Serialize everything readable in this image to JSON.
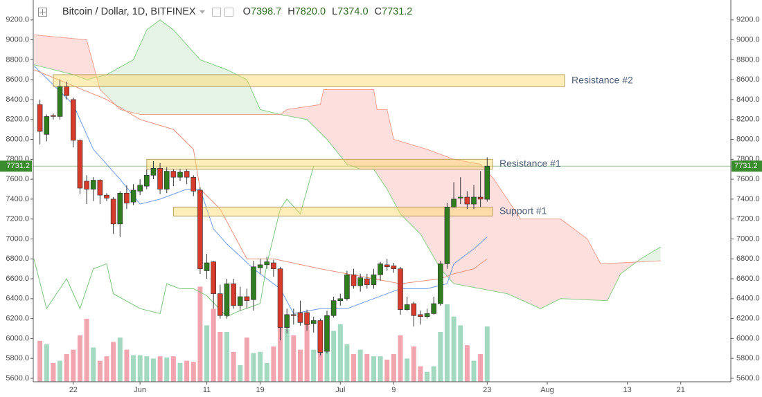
{
  "chart_data": {
    "type": "candlestick",
    "title": "Bitcoin / Dollar, 1D, BITFINEX",
    "ohlc_header": [
      {
        "key": "O",
        "label": "7398.7"
      },
      {
        "key": "H",
        "label": "7820.0"
      },
      {
        "key": "L",
        "label": "7374.0"
      },
      {
        "key": "C",
        "label": "7731.2"
      }
    ],
    "x": [
      0,
      1,
      2,
      3,
      4,
      5,
      6,
      7,
      8,
      9,
      10,
      11,
      12,
      13,
      14,
      15,
      16,
      17,
      18,
      19,
      20,
      21,
      22,
      23,
      24,
      25,
      26,
      27,
      28,
      29,
      30,
      31,
      32,
      33,
      34,
      35,
      36,
      37,
      38,
      39,
      40,
      41,
      42,
      43,
      44,
      45,
      46,
      47,
      48,
      49,
      50,
      51,
      52,
      53,
      54,
      55,
      56,
      57,
      58,
      59,
      60,
      61,
      62,
      63,
      64,
      65,
      66,
      67
    ],
    "open": [
      8350,
      8050,
      8240,
      8230,
      8530,
      8400,
      7990,
      7580,
      7500,
      7590,
      7440,
      7400,
      7150,
      7460,
      7370,
      7480,
      7530,
      7640,
      7710,
      7500,
      7680,
      7620,
      7680,
      7620,
      7490,
      6680,
      6770,
      6450,
      6230,
      6550,
      6330,
      6420,
      6390,
      6710,
      6740,
      6760,
      6700,
      6110,
      6240,
      6260,
      6260,
      6150,
      6180,
      5870,
      6230,
      6380,
      6400,
      6640,
      6530,
      6600,
      6540,
      6640,
      6740,
      6730,
      6700,
      6290,
      6350,
      6240,
      6220,
      6250,
      6350,
      6750,
      7320,
      7410,
      7420,
      7350,
      7420,
      7398.7
    ],
    "high": [
      8400,
      8250,
      8260,
      8600,
      8580,
      8420,
      8000,
      7640,
      7620,
      7600,
      7460,
      7420,
      7480,
      7540,
      7550,
      7600,
      7700,
      7780,
      7760,
      7720,
      7700,
      7700,
      7700,
      7640,
      7520,
      6850,
      6780,
      6540,
      6600,
      6600,
      6520,
      6500,
      6780,
      6800,
      6820,
      6790,
      6720,
      6300,
      6300,
      6380,
      6290,
      6220,
      6200,
      6280,
      6420,
      6450,
      6680,
      6700,
      6650,
      6650,
      6700,
      6770,
      6800,
      6760,
      6720,
      6420,
      6370,
      6280,
      6300,
      6420,
      6780,
      7360,
      7570,
      7620,
      7480,
      7540,
      7680,
      7820
    ],
    "low": [
      7950,
      7980,
      8200,
      8200,
      8400,
      7920,
      7450,
      7350,
      7380,
      7350,
      7380,
      7050,
      7020,
      7300,
      7340,
      7440,
      7500,
      7600,
      7450,
      7460,
      7530,
      7580,
      7550,
      7430,
      6650,
      6600,
      6300,
      6200,
      6200,
      6300,
      6280,
      6300,
      6280,
      6650,
      6700,
      6620,
      5980,
      6050,
      6140,
      6130,
      6080,
      6060,
      5830,
      5850,
      6210,
      6330,
      6380,
      6500,
      6470,
      6500,
      6500,
      6580,
      6680,
      6660,
      6240,
      6280,
      6120,
      6140,
      6200,
      6240,
      6330,
      6700,
      7320,
      7350,
      7300,
      7300,
      7320,
      7374
    ],
    "close": [
      8080,
      8230,
      8230,
      8530,
      8440,
      7990,
      7510,
      7500,
      7590,
      7440,
      7410,
      7150,
      7460,
      7360,
      7490,
      7540,
      7640,
      7710,
      7500,
      7680,
      7620,
      7670,
      7620,
      7480,
      6700,
      6760,
      6450,
      6230,
      6550,
      6330,
      6420,
      6380,
      6720,
      6740,
      6770,
      6700,
      6110,
      6240,
      6230,
      6160,
      6140,
      6180,
      5860,
      6230,
      6380,
      6400,
      6640,
      6530,
      6610,
      6540,
      6640,
      6750,
      6720,
      6700,
      6290,
      6340,
      6230,
      6220,
      6250,
      6350,
      6750,
      7320,
      7400,
      7420,
      7350,
      7420,
      7400,
      7731.2
    ],
    "volume": [
      37,
      34,
      17,
      19,
      25,
      29,
      42,
      57,
      31,
      19,
      23,
      36,
      40,
      29,
      24,
      24,
      23,
      21,
      23,
      22,
      23,
      17,
      19,
      18,
      86,
      51,
      66,
      45,
      45,
      27,
      15,
      40,
      26,
      27,
      17,
      32,
      54,
      48,
      42,
      29,
      54,
      29,
      51,
      27,
      46,
      52,
      34,
      25,
      29,
      25,
      23,
      23,
      20,
      25,
      42,
      21,
      32,
      14,
      9,
      14,
      45,
      70,
      59,
      51,
      33,
      19,
      25,
      50
    ],
    "vlim": [
      0,
      100
    ],
    "up_color": "#2f7d1f",
    "down_color": "#d63b2c",
    "volume_up_color": "#a3d9c0",
    "volume_down_color": "#f2a5ae",
    "xlim": [
      -1,
      103.5
    ],
    "xticks": [
      {
        "value": 5,
        "label": "22"
      },
      {
        "value": 15,
        "label": "Jun"
      },
      {
        "value": 25,
        "label": "11"
      },
      {
        "value": 33,
        "label": "19"
      },
      {
        "value": 45,
        "label": "Jul"
      },
      {
        "value": 53,
        "label": "9"
      },
      {
        "value": 67,
        "label": "23"
      },
      {
        "value": 76,
        "label": "Aug"
      },
      {
        "value": 88,
        "label": "13"
      },
      {
        "value": 96,
        "label": "21"
      }
    ],
    "ylim": [
      5565,
      9400
    ],
    "yticks": [
      {
        "value": 5600,
        "label": "5600.0"
      },
      {
        "value": 5800,
        "label": "5800.0"
      },
      {
        "value": 6000,
        "label": "6000.0"
      },
      {
        "value": 6200,
        "label": "6200.0"
      },
      {
        "value": 6400,
        "label": "6400.0"
      },
      {
        "value": 6600,
        "label": "6600.0"
      },
      {
        "value": 6800,
        "label": "6800.0"
      },
      {
        "value": 7000,
        "label": "7000.0"
      },
      {
        "value": 7200,
        "label": "7200.0"
      },
      {
        "value": 7400,
        "label": "7400.0"
      },
      {
        "value": 7600,
        "label": "7600.0"
      },
      {
        "value": 7800,
        "label": "7800.0"
      },
      {
        "value": 8000,
        "label": "8000.0"
      },
      {
        "value": 8200,
        "label": "8200.0"
      },
      {
        "value": 8400,
        "label": "8400.0"
      },
      {
        "value": 8600,
        "label": "8600.0"
      },
      {
        "value": 8800,
        "label": "8800.0"
      },
      {
        "value": 9000,
        "label": "9000.0"
      },
      {
        "value": 9200,
        "label": "9200.0"
      }
    ],
    "last_price": {
      "value": 7731.2,
      "label": "7731.2",
      "color": "#3a8a2e"
    },
    "grid": false,
    "lines": [
      {
        "color": "#6d9be8",
        "x": [
          -0.9,
          5,
          8,
          12,
          15,
          18,
          22,
          24,
          26,
          28,
          32,
          36,
          38,
          42,
          46,
          50,
          54,
          58,
          61,
          62,
          65,
          67
        ],
        "values": [
          8740,
          8350,
          7900,
          7600,
          7350,
          7400,
          7500,
          7500,
          7100,
          6950,
          6700,
          6500,
          6250,
          6300,
          6300,
          6400,
          6500,
          6500,
          6550,
          6750,
          6900,
          7020
        ]
      },
      {
        "color": "#e8917a",
        "x": [
          -0.9,
          10,
          15,
          20,
          23,
          24,
          27,
          31,
          35,
          42,
          50,
          54,
          60,
          62,
          65,
          67
        ],
        "values": [
          8700,
          8400,
          8200,
          8100,
          7900,
          7500,
          7300,
          6800,
          6800,
          6700,
          6600,
          6550,
          6600,
          6650,
          6700,
          6800
        ]
      },
      {
        "color": "#7cc47c",
        "x": [
          -0.9,
          1,
          4,
          6,
          8,
          10,
          11,
          15,
          18,
          19,
          21,
          23,
          25,
          28,
          30,
          33,
          34,
          36,
          37,
          39,
          41
        ],
        "values": [
          6800,
          6300,
          6600,
          6300,
          6700,
          6750,
          6450,
          6300,
          6250,
          6550,
          6500,
          6500,
          6430,
          6220,
          6280,
          6350,
          6750,
          7300,
          7400,
          7250,
          7731.2
        ]
      }
    ],
    "cloud": {
      "up_color": "#4caf50",
      "down_color": "#f44336",
      "span_a": {
        "color": "#86cf86",
        "x": [
          -0.9,
          5,
          7,
          10,
          14,
          16,
          18,
          20,
          24,
          28,
          31,
          33,
          36,
          40,
          43,
          46,
          48,
          50,
          52,
          54,
          57,
          60,
          62,
          66,
          70,
          75,
          78,
          85,
          87,
          90,
          93
        ],
        "values": [
          8750,
          8650,
          8600,
          8650,
          8800,
          9100,
          9200,
          9100,
          8800,
          8700,
          8600,
          8300,
          8250,
          8200,
          8000,
          7750,
          7700,
          7700,
          7500,
          7250,
          7050,
          6700,
          6550,
          6500,
          6450,
          6300,
          6400,
          6380,
          6650,
          6800,
          6920
        ]
      },
      "span_b": {
        "color": "#f0a090",
        "x": [
          -0.9,
          7,
          9,
          12,
          15,
          20,
          25,
          33,
          36,
          37,
          42,
          42.5,
          50,
          50.5,
          52,
          53,
          58,
          62,
          66,
          68,
          72,
          78,
          82,
          84,
          93
        ],
        "values": [
          9050,
          9000,
          8500,
          8300,
          8250,
          8250,
          8250,
          8250,
          8250,
          8300,
          8350,
          8500,
          8500,
          8300,
          8300,
          8000,
          7900,
          7800,
          7750,
          7600,
          7200,
          7200,
          7000,
          6750,
          6780
        ]
      }
    },
    "annotations": [
      {
        "label": "Resistance #2",
        "x": [
          2,
          78.6
        ],
        "y": [
          8530,
          8650
        ]
      },
      {
        "label": "Resistance #1",
        "x": [
          16,
          67.8
        ],
        "y": [
          7700,
          7800
        ]
      },
      {
        "label": "Support #1",
        "x": [
          20,
          67.8
        ],
        "y": [
          7230,
          7320
        ]
      }
    ]
  }
}
